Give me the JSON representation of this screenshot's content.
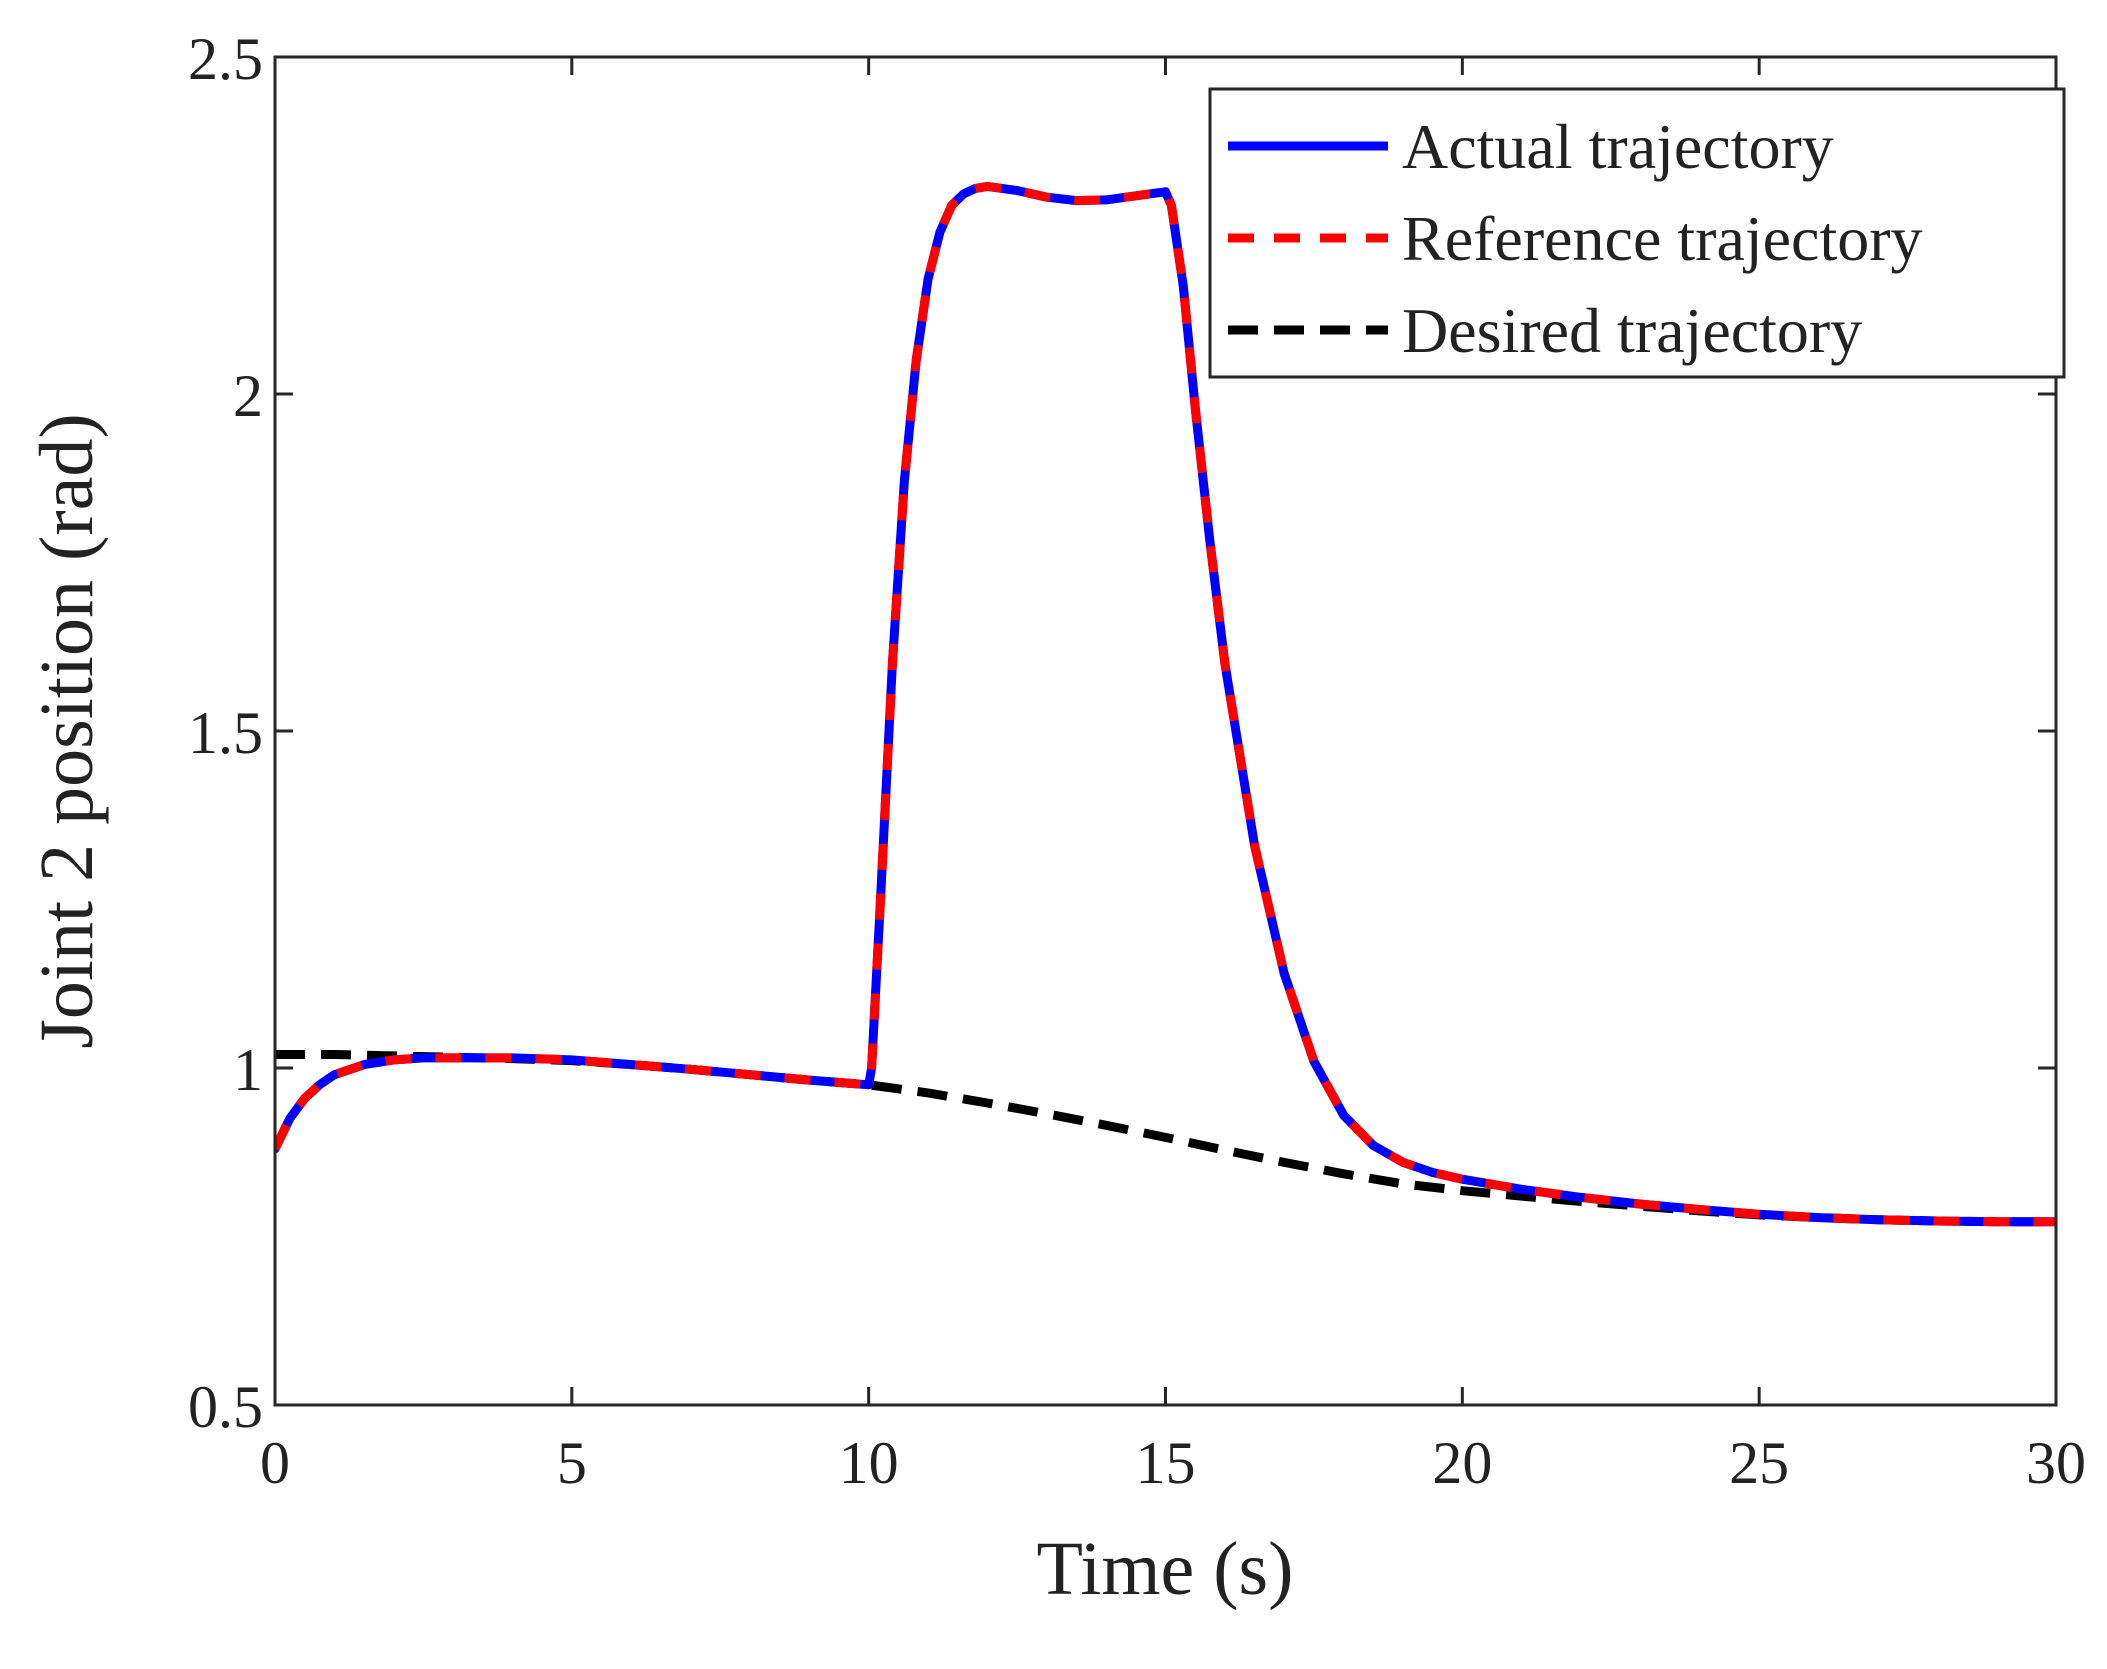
{
  "chart_data": {
    "type": "line",
    "title": "",
    "xlabel": "Time (s)",
    "ylabel": "Joint 2 position (rad)",
    "xlim": [
      0,
      30
    ],
    "ylim": [
      0.5,
      2.5
    ],
    "xticks": [
      0,
      5,
      10,
      15,
      20,
      25,
      30
    ],
    "yticks": [
      0.5,
      1,
      1.5,
      2,
      2.5
    ],
    "xtick_labels": [
      "0",
      "5",
      "10",
      "15",
      "20",
      "25",
      "30"
    ],
    "ytick_labels": [
      "0.5",
      "1",
      "1.5",
      "2",
      "2.5"
    ],
    "grid": false,
    "legend_position": "top-right",
    "series": [
      {
        "name": "Actual trajectory",
        "color": "#0000ff",
        "style": "solid",
        "x": [
          0,
          0.25,
          0.5,
          0.75,
          1,
          1.5,
          2,
          2.5,
          3,
          4,
          5,
          6,
          7,
          8,
          9,
          10,
          10.05,
          10.2,
          10.4,
          10.6,
          10.8,
          11,
          11.2,
          11.4,
          11.6,
          11.8,
          12,
          12.5,
          13,
          13.5,
          14,
          14.5,
          15,
          15.1,
          15.3,
          15.5,
          15.75,
          16,
          16.5,
          17,
          17.5,
          18,
          18.5,
          19,
          19.5,
          20,
          21,
          22,
          23,
          24,
          25,
          26,
          27,
          28,
          29,
          30
        ],
        "values": [
          0.88,
          0.925,
          0.955,
          0.975,
          0.99,
          1.005,
          1.012,
          1.015,
          1.015,
          1.015,
          1.012,
          1.005,
          0.998,
          0.99,
          0.982,
          0.975,
          1.0,
          1.25,
          1.6,
          1.87,
          2.05,
          2.17,
          2.24,
          2.28,
          2.297,
          2.305,
          2.308,
          2.302,
          2.292,
          2.287,
          2.288,
          2.294,
          2.3,
          2.28,
          2.16,
          1.98,
          1.78,
          1.6,
          1.33,
          1.14,
          1.01,
          0.93,
          0.885,
          0.86,
          0.845,
          0.835,
          0.82,
          0.808,
          0.798,
          0.79,
          0.783,
          0.778,
          0.775,
          0.773,
          0.772,
          0.772
        ]
      },
      {
        "name": "Reference trajectory",
        "color": "#ff0000",
        "style": "dashed",
        "x": [
          0,
          0.25,
          0.5,
          0.75,
          1,
          1.5,
          2,
          2.5,
          3,
          4,
          5,
          6,
          7,
          8,
          9,
          10,
          10.05,
          10.2,
          10.4,
          10.6,
          10.8,
          11,
          11.2,
          11.4,
          11.6,
          11.8,
          12,
          12.5,
          13,
          13.5,
          14,
          14.5,
          15,
          15.1,
          15.3,
          15.5,
          15.75,
          16,
          16.5,
          17,
          17.5,
          18,
          18.5,
          19,
          19.5,
          20,
          21,
          22,
          23,
          24,
          25,
          26,
          27,
          28,
          29,
          30
        ],
        "values": [
          0.88,
          0.925,
          0.955,
          0.975,
          0.99,
          1.005,
          1.012,
          1.015,
          1.015,
          1.015,
          1.012,
          1.005,
          0.998,
          0.99,
          0.982,
          0.975,
          1.0,
          1.25,
          1.6,
          1.87,
          2.05,
          2.17,
          2.24,
          2.28,
          2.297,
          2.305,
          2.308,
          2.302,
          2.292,
          2.287,
          2.288,
          2.294,
          2.3,
          2.28,
          2.16,
          1.98,
          1.78,
          1.6,
          1.33,
          1.14,
          1.01,
          0.93,
          0.885,
          0.86,
          0.845,
          0.835,
          0.82,
          0.808,
          0.798,
          0.79,
          0.783,
          0.778,
          0.775,
          0.773,
          0.772,
          0.772
        ]
      },
      {
        "name": "Desired trajectory",
        "color": "#000000",
        "style": "dashed",
        "x": [
          0,
          1,
          2,
          3,
          4,
          5,
          6,
          7,
          8,
          9,
          10,
          11,
          12,
          13,
          14,
          15,
          16,
          17,
          18,
          19,
          20,
          21,
          22,
          23,
          24,
          25,
          26,
          27,
          28,
          29,
          30
        ],
        "values": [
          1.02,
          1.02,
          1.018,
          1.016,
          1.014,
          1.011,
          1.005,
          0.998,
          0.99,
          0.982,
          0.975,
          0.963,
          0.948,
          0.932,
          0.915,
          0.897,
          0.878,
          0.86,
          0.843,
          0.828,
          0.818,
          0.81,
          0.802,
          0.795,
          0.788,
          0.782,
          0.778,
          0.775,
          0.773,
          0.772,
          0.772
        ]
      }
    ]
  }
}
